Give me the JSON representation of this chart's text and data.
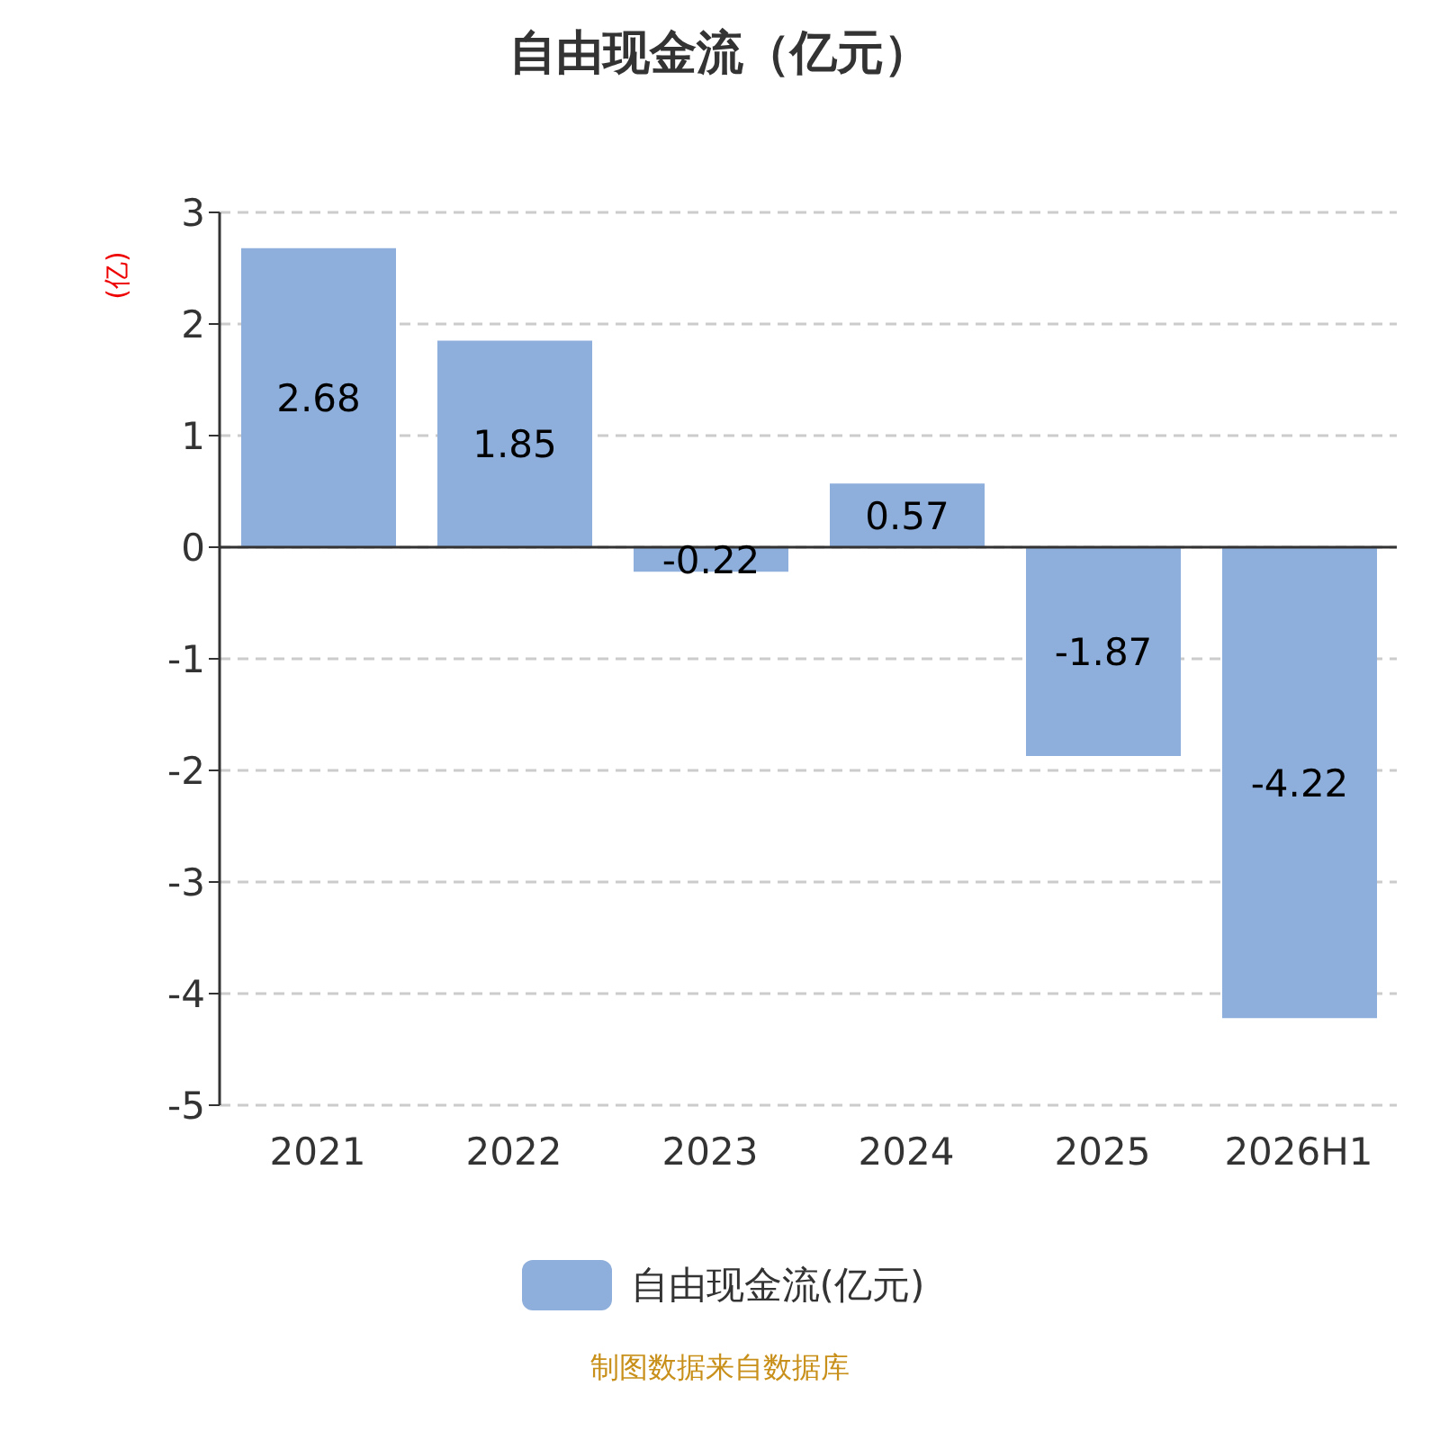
{
  "chart_data": {
    "type": "bar",
    "title": "自由现金流（亿元）",
    "ylabel": "(亿)",
    "categories": [
      "2021",
      "2022",
      "2023",
      "2024",
      "2025",
      "2026H1"
    ],
    "series": [
      {
        "name": "自由现金流(亿元)",
        "color": "#8eaedb",
        "values": [
          2.68,
          1.85,
          -0.22,
          0.57,
          -1.87,
          -4.22
        ]
      }
    ],
    "ylim": [
      -5,
      3
    ],
    "yticks": [
      -5,
      -4,
      -3,
      -2,
      -1,
      0,
      1,
      2,
      3
    ],
    "grid": "y",
    "legend": "bottom",
    "data_labels": true,
    "annotations": [
      "制图数据来自数据库"
    ]
  }
}
